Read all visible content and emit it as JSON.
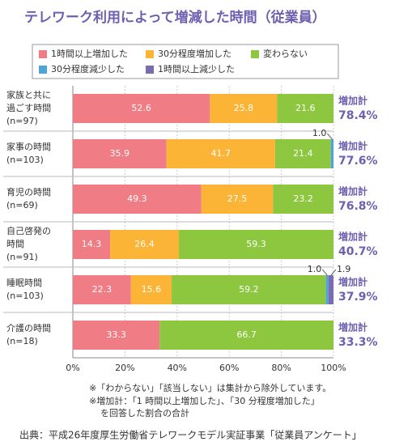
{
  "chart_data": {
    "type": "stacked-barh",
    "title": "テレワーク利用によって増減した時間（従業員）",
    "categories": [
      [
        "家族と共に",
        "過ごす時間",
        "(n=97)"
      ],
      [
        "家事の時間",
        "(n=103)"
      ],
      [
        "育児の時間",
        "(n=69)"
      ],
      [
        "自己啓発の",
        "時間",
        "(n=91)"
      ],
      [
        "睡眠時間",
        "(n=103)"
      ],
      [
        "介護の時間",
        "(n=18)"
      ]
    ],
    "series": [
      {
        "name": "1時間以上増加した",
        "color": "#f07c86",
        "values": [
          52.6,
          35.9,
          49.3,
          14.3,
          22.3,
          33.3
        ]
      },
      {
        "name": "30分程度増加した",
        "color": "#fbb436",
        "values": [
          25.8,
          41.7,
          27.5,
          26.4,
          15.6,
          null
        ]
      },
      {
        "name": "変わらない",
        "color": "#8dc63f",
        "values": [
          21.6,
          21.4,
          23.2,
          59.3,
          59.2,
          66.7
        ]
      },
      {
        "name": "30分程度減少した",
        "color": "#4fa3d8",
        "values": [
          null,
          1.0,
          null,
          null,
          1.0,
          null
        ],
        "value_labels": [
          null,
          "1.0",
          null,
          null,
          "1.0",
          null
        ]
      },
      {
        "name": "1時間以上減少した",
        "color": "#7b6bb0",
        "values": [
          null,
          null,
          null,
          null,
          1.9,
          null
        ]
      }
    ],
    "totals": {
      "label": "増加計",
      "values": [
        78.4,
        77.6,
        76.8,
        40.7,
        37.9,
        33.3
      ],
      "value_labels": [
        "78.4%",
        "77.6%",
        "76.8%",
        "40.7%",
        "37.9%",
        "33.3%"
      ]
    },
    "xlim": [
      0,
      100
    ],
    "xticks": [
      {
        "value": 0,
        "label": "0%"
      },
      {
        "value": 20,
        "label": "20%"
      },
      {
        "value": 40,
        "label": "40%"
      },
      {
        "value": 60,
        "label": "60%"
      },
      {
        "value": 80,
        "label": "80%"
      },
      {
        "value": 100,
        "label": "100%"
      }
    ],
    "grid": true,
    "notes": [
      "※「わからない」「該当しない」は集計から除外しています。",
      "※増加計：「1 時間以上増加した」、「30 分程度増加した」",
      "を回答した割合の合計"
    ],
    "source": "出典：平成26年度厚生労働省テレワークモデル実証事業「従業員アンケート」"
  }
}
